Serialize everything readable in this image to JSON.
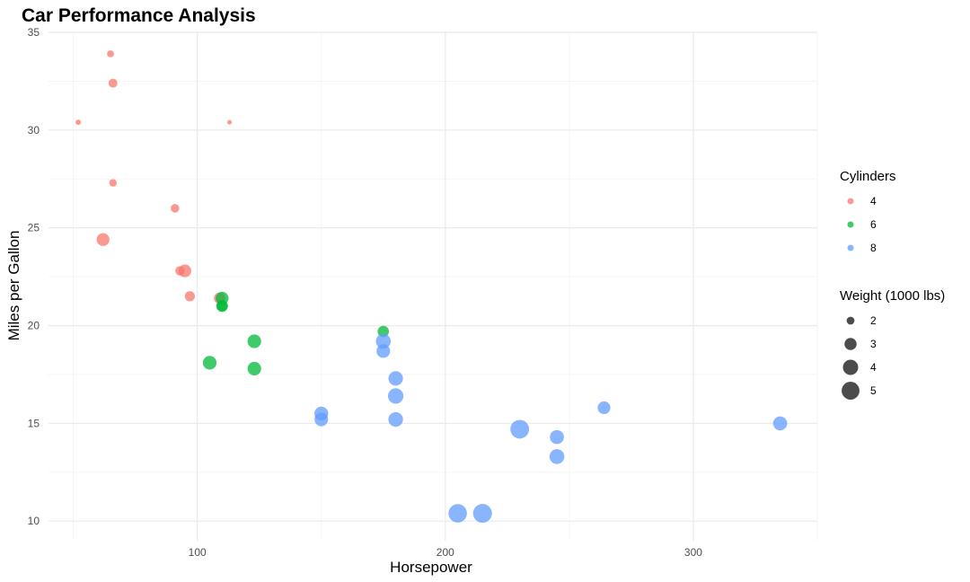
{
  "chart_data": {
    "type": "scatter",
    "title": "Car Performance Analysis",
    "xlabel": "Horsepower",
    "ylabel": "Miles per Gallon",
    "xlim": [
      40,
      350
    ],
    "ylim": [
      9,
      35
    ],
    "x_ticks": [
      100,
      200,
      300
    ],
    "x_tick_labels": [
      "100",
      "200",
      "300"
    ],
    "y_ticks": [
      10,
      15,
      20,
      25,
      30,
      35
    ],
    "y_tick_labels": [
      "10",
      "15",
      "20",
      "25",
      "30",
      "35"
    ],
    "grid": true,
    "color_legend": {
      "title": "Cylinders",
      "position": "right",
      "entries": [
        {
          "label": "4",
          "color": "#F8766D"
        },
        {
          "label": "6",
          "color": "#00BA38"
        },
        {
          "label": "8",
          "color": "#619CFF"
        }
      ]
    },
    "size_legend": {
      "title": "Weight (1000 lbs)",
      "position": "right",
      "entries": [
        {
          "label": "2",
          "value": 2
        },
        {
          "label": "3",
          "value": 3
        },
        {
          "label": "4",
          "value": 4
        },
        {
          "label": "5",
          "value": 5
        }
      ]
    },
    "weight_range": [
      1.513,
      5.424
    ],
    "series": [
      {
        "name": "4",
        "points": [
          {
            "hp": 93,
            "mpg": 22.8,
            "wt": 2.32
          },
          {
            "hp": 62,
            "mpg": 24.4,
            "wt": 3.19
          },
          {
            "hp": 95,
            "mpg": 22.8,
            "wt": 3.15
          },
          {
            "hp": 66,
            "mpg": 32.4,
            "wt": 2.2
          },
          {
            "hp": 52,
            "mpg": 30.4,
            "wt": 1.615
          },
          {
            "hp": 65,
            "mpg": 33.9,
            "wt": 1.835
          },
          {
            "hp": 97,
            "mpg": 21.5,
            "wt": 2.465
          },
          {
            "hp": 66,
            "mpg": 27.3,
            "wt": 1.935
          },
          {
            "hp": 91,
            "mpg": 26.0,
            "wt": 2.14
          },
          {
            "hp": 113,
            "mpg": 30.4,
            "wt": 1.513
          },
          {
            "hp": 109,
            "mpg": 21.4,
            "wt": 2.78
          }
        ]
      },
      {
        "name": "6",
        "points": [
          {
            "hp": 110,
            "mpg": 21.0,
            "wt": 2.62
          },
          {
            "hp": 110,
            "mpg": 21.0,
            "wt": 2.875
          },
          {
            "hp": 110,
            "mpg": 21.4,
            "wt": 3.215
          },
          {
            "hp": 105,
            "mpg": 18.1,
            "wt": 3.46
          },
          {
            "hp": 123,
            "mpg": 19.2,
            "wt": 3.44
          },
          {
            "hp": 123,
            "mpg": 17.8,
            "wt": 3.44
          },
          {
            "hp": 175,
            "mpg": 19.7,
            "wt": 2.77
          }
        ]
      },
      {
        "name": "8",
        "points": [
          {
            "hp": 175,
            "mpg": 18.7,
            "wt": 3.44
          },
          {
            "hp": 245,
            "mpg": 14.3,
            "wt": 3.57
          },
          {
            "hp": 180,
            "mpg": 16.4,
            "wt": 4.07
          },
          {
            "hp": 180,
            "mpg": 17.3,
            "wt": 3.73
          },
          {
            "hp": 180,
            "mpg": 15.2,
            "wt": 3.78
          },
          {
            "hp": 205,
            "mpg": 10.4,
            "wt": 5.25
          },
          {
            "hp": 215,
            "mpg": 10.4,
            "wt": 5.424
          },
          {
            "hp": 230,
            "mpg": 14.7,
            "wt": 5.345
          },
          {
            "hp": 150,
            "mpg": 15.5,
            "wt": 3.52
          },
          {
            "hp": 150,
            "mpg": 15.2,
            "wt": 3.435
          },
          {
            "hp": 245,
            "mpg": 13.3,
            "wt": 3.84
          },
          {
            "hp": 175,
            "mpg": 19.2,
            "wt": 3.845
          },
          {
            "hp": 264,
            "mpg": 15.8,
            "wt": 3.17
          },
          {
            "hp": 335,
            "mpg": 15.0,
            "wt": 3.57
          }
        ]
      }
    ]
  }
}
